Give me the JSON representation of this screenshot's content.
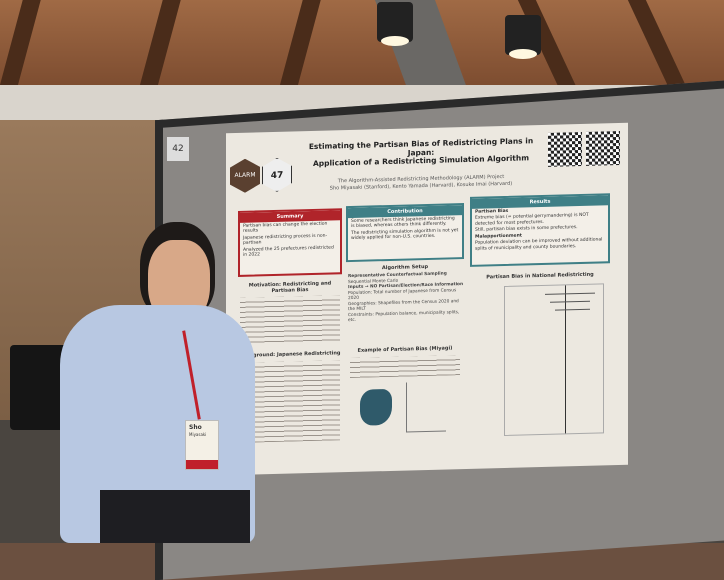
{
  "booth_number": "42",
  "poster": {
    "title_line1": "Estimating the Partisan Bias of Redistricting Plans in Japan:",
    "title_line2": "Application of a Redistricting Simulation Algorithm",
    "project": "The Algorithm-Assisted Redistricting Methodology (ALARM) Project",
    "authors": "Sho Miyasaki (Stanford), Kento Yamada (Harvard), Kosuke Imai (Harvard)",
    "logos": [
      "ALARM",
      "47"
    ],
    "sections": {
      "summary": {
        "title": "Summary",
        "lines": [
          "Partisan bias can change the election results",
          "Japanese redistricting process is non-partisan",
          "Analyzed the 25 prefectures redistricted in 2022"
        ]
      },
      "contribution": {
        "title": "Contribution",
        "lines": [
          "Some researchers think Japanese redistricting is biased, whereas others think differently.",
          "The redistricting simulation algorithm is not yet widely applied for non-U.S. countries."
        ]
      },
      "results": {
        "title": "Results",
        "lines": [
          "Partisan Bias",
          "Extreme bias (= potential gerrymandering) is NOT detected for most prefectures.",
          "Still, partisan bias exists in some prefectures.",
          "Malapportionment",
          "Population deviation can be improved without additional splits of municipality and county boundaries."
        ]
      },
      "motivation": "Motivation: Redistricting and Partisan Bias",
      "background": "Background: Japanese Redistricting",
      "algorithm": {
        "title": "Algorithm Setup",
        "lines": [
          "Representative Counterfactual Sampling",
          "Sequential Monte Carlo",
          "Inputs → NO Partisan/Election/Race Information",
          "Population: Total number of Japanese from Census 2020",
          "Geographies: Shapefiles from the Census 2020 and the MILT",
          "Constraints: Population balance, municipality splits, etc."
        ]
      },
      "example": "Example of Partisan Bias (Miyagi)",
      "chart_title": "Partisan Bias in National Redistricting"
    }
  },
  "badge": {
    "name": "Sho",
    "surname": "Miyasaki"
  },
  "colors": {
    "summary": "#b0242a",
    "contribution": "#3f7f86",
    "results": "#3f7f86"
  }
}
